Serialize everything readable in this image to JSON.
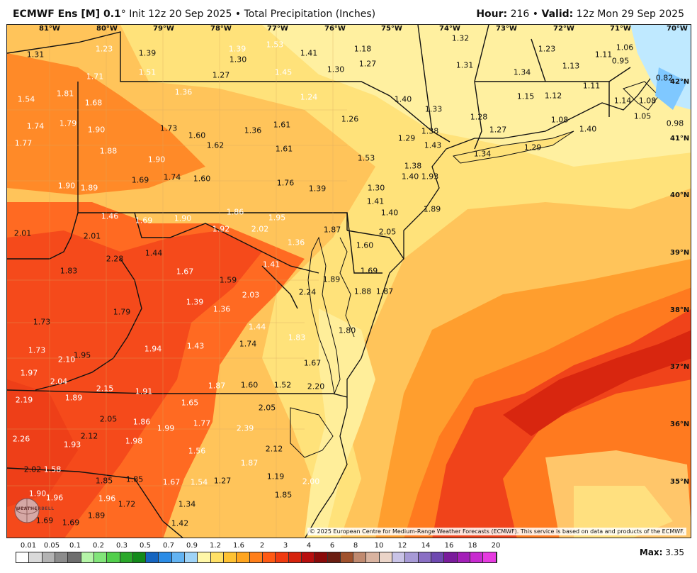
{
  "header": {
    "model": "ECMWF Ens [M] 0.1",
    "degree": "°",
    "init": "Init 12z 20 Sep 2025",
    "bullet": "•",
    "product": "Total Precipitation (Inches)",
    "hour_label": "Hour:",
    "hour": "216",
    "valid_label": "Valid:",
    "valid": "12z Mon 29 Sep 2025"
  },
  "longitudes": [
    "81°W",
    "80°W",
    "79°W",
    "78°W",
    "77°W",
    "76°W",
    "75°W",
    "74°W",
    "73°W",
    "72°W",
    "71°W",
    "70°W"
  ],
  "latitudes": [
    "42°N",
    "41°N",
    "40°N",
    "39°N",
    "38°N",
    "37°N",
    "36°N",
    "35°N"
  ],
  "map_values": [
    "1.31",
    "1.23",
    "1.39",
    "1.39",
    "1.53",
    "1.41",
    "1.18",
    "1.32",
    "1.23",
    "1.11",
    "1.06",
    "1.51",
    "1.30",
    "1.27",
    "1.45",
    "1.30",
    "1.27",
    "1.31",
    "1.13",
    "0.95",
    "1.71",
    "1.36",
    "1.34",
    "0.82",
    "1.54",
    "1.81",
    "1.68",
    "1.24",
    "1.40",
    "1.15",
    "1.12",
    "1.11",
    "1.74",
    "1.79",
    "1.90",
    "1.73",
    "1.60",
    "1.36",
    "1.61",
    "1.26",
    "1.33",
    "1.28",
    "1.08",
    "1.14",
    "1.08",
    "1.77",
    "1.62",
    "1.61",
    "1.29",
    "1.38",
    "1.43",
    "1.27",
    "1.40",
    "1.05",
    "0.98",
    "1.88",
    "1.90",
    "1.53",
    "1.34",
    "1.29",
    "1.74",
    "1.60",
    "1.38",
    "1.40",
    "1.93",
    "1.90",
    "1.89",
    "1.69",
    "1.76",
    "1.39",
    "1.30",
    "1.41",
    "1.40",
    "1.89",
    "1.46",
    "1.69",
    "1.90",
    "1.86",
    "1.95",
    "2.01",
    "2.01",
    "1.92",
    "2.02",
    "1.36",
    "1.87",
    "2.05",
    "1.44",
    "2.28",
    "1.60",
    "1.83",
    "1.67",
    "1.41",
    "1.89",
    "1.69",
    "1.59",
    "2.03",
    "2.24",
    "1.79",
    "1.39",
    "1.36",
    "1.88",
    "1.87",
    "1.73",
    "1.44",
    "1.83",
    "1.80",
    "1.73",
    "2.10",
    "1.95",
    "1.94",
    "1.43",
    "1.74",
    "1.67",
    "1.97",
    "2.04",
    "2.15",
    "1.91",
    "1.87",
    "1.60",
    "1.52",
    "2.20",
    "2.19",
    "1.89",
    "1.65",
    "2.05",
    "2.05",
    "1.86",
    "1.77",
    "2.39",
    "2.26",
    "2.12",
    "1.93",
    "1.99",
    "1.98",
    "1.56",
    "2.12",
    "2.02",
    "1.58",
    "1.87",
    "1.96",
    "1.85",
    "1.85",
    "1.67",
    "1.54",
    "1.27",
    "1.19",
    "2.00",
    "1.90",
    "1.96",
    "1.72",
    "1.34",
    "1.85",
    "1.89",
    "1.69",
    "1.69",
    "1.42"
  ],
  "copyright": "© 2025 European Centre for Medium-Range Weather Forecasts (ECMWF). This service is based on data and products of the ECMWF.",
  "logo_text": "WEATHERBELL",
  "legend": {
    "labels": [
      "0.01",
      "0.05",
      "0.1",
      "0.2",
      "0.3",
      "0.5",
      "0.7",
      "0.9",
      "1.2",
      "1.6",
      "2",
      "3",
      "4",
      "6",
      "8",
      "10",
      "12",
      "14",
      "16",
      "18",
      "20"
    ],
    "colors": [
      "#ffffff",
      "#d9d9d9",
      "#b3b3b3",
      "#8c8c8c",
      "#6e6e6e",
      "#b5f5a8",
      "#82e57a",
      "#52cf4c",
      "#2aa82a",
      "#138a1a",
      "#1565c0",
      "#2b8ce6",
      "#63b3f2",
      "#9fd3f7",
      "#fff7a8",
      "#ffe066",
      "#ffc233",
      "#ffa51f",
      "#ff7f1a",
      "#ff5a14",
      "#f03a10",
      "#d6230d",
      "#b80f0f",
      "#8a0a0a",
      "#6b1e12",
      "#a0522d",
      "#c08a70",
      "#d9b3a0",
      "#ead4c8",
      "#c9c3e6",
      "#a79ad6",
      "#8a6fc4",
      "#6e49b0",
      "#7a1c9c",
      "#a31fb8",
      "#c82ad0",
      "#e63ae0"
    ],
    "max_label": "Max:",
    "max_value": "3.35"
  }
}
